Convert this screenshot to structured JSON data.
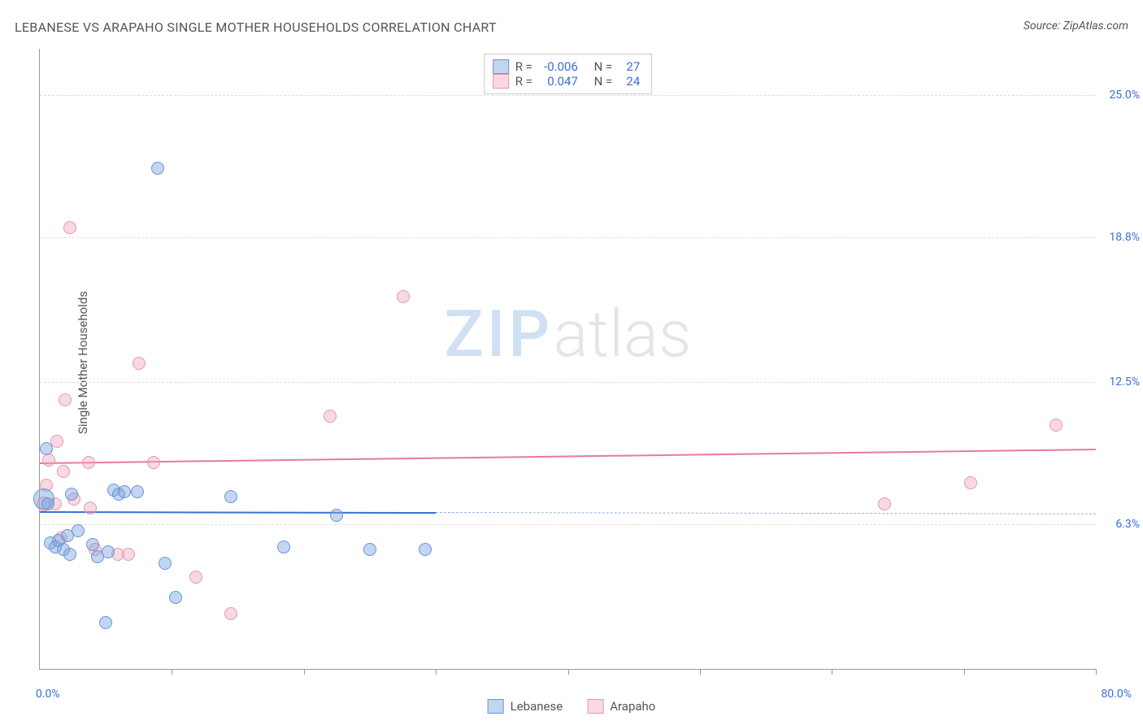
{
  "title": "LEBANESE VS ARAPAHO SINGLE MOTHER HOUSEHOLDS CORRELATION CHART",
  "source_prefix": "Source: ",
  "source_name": "ZipAtlas.com",
  "ylabel": "Single Mother Households",
  "watermark_left": "ZIP",
  "watermark_right": "atlas",
  "chart": {
    "type": "scatter",
    "background_color": "#ffffff",
    "grid_color": "#dddddd",
    "axis_color": "#999999",
    "xlim": [
      0,
      80
    ],
    "ylim": [
      0,
      27
    ],
    "y_gridlines": [
      6.3,
      12.5,
      18.8,
      25.0
    ],
    "y_tick_labels": [
      "6.3%",
      "12.5%",
      "18.8%",
      "25.0%"
    ],
    "x_ticks": [
      0,
      10,
      20,
      30,
      40,
      50,
      60,
      70,
      80
    ],
    "x_left_label": "0.0%",
    "x_right_label": "80.0%",
    "label_color": "#3b6fd6",
    "axis_label_fontsize": 14,
    "title_fontsize": 16
  },
  "stat_box": {
    "r_label": "R =",
    "n_label": "N =",
    "series": [
      {
        "color": "blue",
        "r": "-0.006",
        "n": "27"
      },
      {
        "color": "pink",
        "r": "0.047",
        "n": "24"
      }
    ]
  },
  "legend": {
    "items": [
      {
        "color": "blue",
        "label": "Lebanese"
      },
      {
        "color": "pink",
        "label": "Arapaho"
      }
    ]
  },
  "series_blue": {
    "name": "Lebanese",
    "marker_fill": "rgba(120,165,225,0.45)",
    "marker_stroke": "#6b95d1",
    "marker_radius": 8,
    "regression": {
      "x1": 0,
      "y1": 6.85,
      "x2": 80,
      "y2": 6.75,
      "solid_until_x": 30,
      "line_color": "#3b6fd6",
      "dash_color": "#8fb0dc"
    },
    "points": [
      {
        "x": 0.3,
        "y": 7.4,
        "r": 12
      },
      {
        "x": 0.5,
        "y": 9.6,
        "r": 7
      },
      {
        "x": 0.6,
        "y": 7.2,
        "r": 7
      },
      {
        "x": 0.8,
        "y": 5.5,
        "r": 7
      },
      {
        "x": 1.2,
        "y": 5.3,
        "r": 7
      },
      {
        "x": 1.4,
        "y": 5.6,
        "r": 7
      },
      {
        "x": 1.8,
        "y": 5.2,
        "r": 7
      },
      {
        "x": 2.1,
        "y": 5.8,
        "r": 7
      },
      {
        "x": 2.3,
        "y": 5.0,
        "r": 7
      },
      {
        "x": 2.4,
        "y": 7.6,
        "r": 7
      },
      {
        "x": 2.9,
        "y": 6.0,
        "r": 7
      },
      {
        "x": 4.0,
        "y": 5.4,
        "r": 7
      },
      {
        "x": 4.4,
        "y": 4.9,
        "r": 7
      },
      {
        "x": 5.0,
        "y": 2.0,
        "r": 7
      },
      {
        "x": 5.2,
        "y": 5.1,
        "r": 7
      },
      {
        "x": 5.6,
        "y": 7.8,
        "r": 7
      },
      {
        "x": 6.0,
        "y": 7.6,
        "r": 7
      },
      {
        "x": 6.4,
        "y": 7.7,
        "r": 7
      },
      {
        "x": 7.4,
        "y": 7.7,
        "r": 7
      },
      {
        "x": 8.9,
        "y": 21.8,
        "r": 7
      },
      {
        "x": 9.5,
        "y": 4.6,
        "r": 7
      },
      {
        "x": 10.3,
        "y": 3.1,
        "r": 7
      },
      {
        "x": 14.5,
        "y": 7.5,
        "r": 7
      },
      {
        "x": 18.5,
        "y": 5.3,
        "r": 7
      },
      {
        "x": 22.5,
        "y": 6.7,
        "r": 7
      },
      {
        "x": 25.0,
        "y": 5.2,
        "r": 7
      },
      {
        "x": 29.2,
        "y": 5.2,
        "r": 7
      }
    ]
  },
  "series_pink": {
    "name": "Arapaho",
    "marker_fill": "rgba(240,160,180,0.40)",
    "marker_stroke": "#e598ac",
    "marker_radius": 8,
    "regression": {
      "x1": 0,
      "y1": 9.0,
      "x2": 80,
      "y2": 9.6,
      "line_color": "#e77aa0"
    },
    "points": [
      {
        "x": 0.3,
        "y": 7.2,
        "r": 8
      },
      {
        "x": 0.5,
        "y": 8.0,
        "r": 7
      },
      {
        "x": 0.7,
        "y": 9.1,
        "r": 7
      },
      {
        "x": 1.2,
        "y": 7.2,
        "r": 7
      },
      {
        "x": 1.3,
        "y": 9.9,
        "r": 7
      },
      {
        "x": 1.6,
        "y": 5.7,
        "r": 7
      },
      {
        "x": 1.8,
        "y": 8.6,
        "r": 7
      },
      {
        "x": 1.9,
        "y": 11.7,
        "r": 7
      },
      {
        "x": 2.3,
        "y": 19.2,
        "r": 7
      },
      {
        "x": 2.6,
        "y": 7.4,
        "r": 7
      },
      {
        "x": 3.7,
        "y": 9.0,
        "r": 7
      },
      {
        "x": 3.8,
        "y": 7.0,
        "r": 7
      },
      {
        "x": 4.2,
        "y": 5.2,
        "r": 7
      },
      {
        "x": 5.9,
        "y": 5.0,
        "r": 7
      },
      {
        "x": 6.7,
        "y": 5.0,
        "r": 7
      },
      {
        "x": 7.5,
        "y": 13.3,
        "r": 7
      },
      {
        "x": 8.6,
        "y": 9.0,
        "r": 7
      },
      {
        "x": 11.8,
        "y": 4.0,
        "r": 7
      },
      {
        "x": 14.5,
        "y": 2.4,
        "r": 7
      },
      {
        "x": 22.0,
        "y": 11.0,
        "r": 7
      },
      {
        "x": 27.5,
        "y": 16.2,
        "r": 7
      },
      {
        "x": 64.0,
        "y": 7.2,
        "r": 7
      },
      {
        "x": 70.5,
        "y": 8.1,
        "r": 7
      },
      {
        "x": 77.0,
        "y": 10.6,
        "r": 7
      }
    ]
  }
}
